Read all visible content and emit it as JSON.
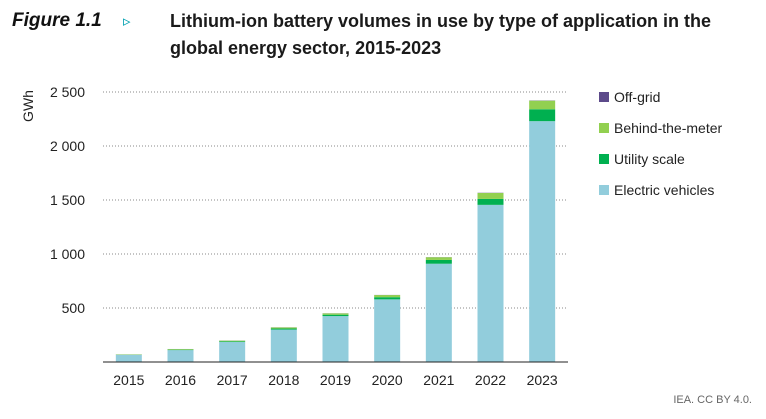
{
  "figure": {
    "label": "Figure 1.1",
    "title": "Lithium-ion battery volumes in use by type of application in the global energy sector, 2015-2023",
    "source": "IEA. CC BY 4.0."
  },
  "chart_data": {
    "type": "bar",
    "stacked": true,
    "categories": [
      "2015",
      "2016",
      "2017",
      "2018",
      "2019",
      "2020",
      "2021",
      "2022",
      "2023"
    ],
    "ylabel": "GWh",
    "ylim": [
      0,
      2500
    ],
    "yticks": [
      500,
      1000,
      1500,
      2000,
      2500
    ],
    "ytick_labels": [
      "500",
      "1 000",
      "1 500",
      "2 000",
      "2 500"
    ],
    "grid": "horizontal-dotted",
    "legend_position": "right",
    "series": [
      {
        "name": "Electric vehicles",
        "color": "#92cddc",
        "values": [
          65,
          110,
          185,
          300,
          425,
          580,
          910,
          1455,
          2230
        ]
      },
      {
        "name": "Utility scale",
        "color": "#00b050",
        "values": [
          2,
          4,
          6,
          10,
          13,
          20,
          35,
          55,
          110
        ]
      },
      {
        "name": "Behind-the-meter",
        "color": "#92d050",
        "values": [
          3,
          6,
          7,
          10,
          12,
          20,
          25,
          55,
          80
        ]
      },
      {
        "name": "Off-grid",
        "color": "#5c4a8a",
        "values": [
          0.5,
          0.5,
          1,
          1,
          1,
          1,
          1,
          2,
          2
        ]
      }
    ],
    "legend_order": [
      "Off-grid",
      "Behind-the-meter",
      "Utility scale",
      "Electric vehicles"
    ]
  }
}
